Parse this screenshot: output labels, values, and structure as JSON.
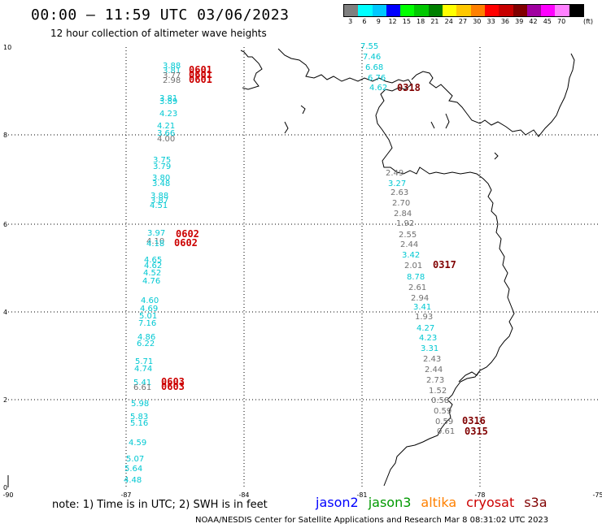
{
  "header": {
    "title": "00:00 – 11:59 UTC 03/06/2023",
    "subtitle": "12 hour collection of altimeter wave heights"
  },
  "colorbar": {
    "colors": [
      "#7f7f7f",
      "#00ffff",
      "#00c8ff",
      "#0000ff",
      "#00ff00",
      "#00c800",
      "#008000",
      "#ffff00",
      "#ffc800",
      "#ff8000",
      "#ff0000",
      "#c80000",
      "#800000",
      "#a000a0",
      "#ff00ff",
      "#ff80ff",
      "#000000"
    ],
    "labels": [
      "3",
      "6",
      "9",
      "12",
      "15",
      "18",
      "21",
      "24",
      "27",
      "30",
      "33",
      "36",
      "39",
      "42",
      "45",
      "70"
    ],
    "unit": "(ft)"
  },
  "axes": {
    "x_ticks": [
      "-90",
      "-87",
      "-84",
      "-81",
      "-78",
      "-75"
    ],
    "y_ticks": [
      "10",
      "8",
      "6",
      "4",
      "2",
      "0"
    ]
  },
  "satellite_colors": {
    "jason2": "#0000ff",
    "jason3": "#009900",
    "altika": "#ff8000",
    "cryosat": "#cc0000",
    "s3a": "#800000",
    "cyan": "#00c8d2",
    "gray": "#707070"
  },
  "tracks": {
    "west": {
      "values": [
        "3.88",
        "3.81",
        "3.77",
        "2.98",
        "3.81",
        "3.89",
        "4.23",
        "4.21",
        "3.66",
        "4.00",
        "3.75",
        "3.79",
        "3.80",
        "3.48",
        "3.88",
        "3.87",
        "4.51",
        "3.97",
        "4.10",
        "4.18",
        "4.65",
        "4.62",
        "4.52",
        "4.76",
        "4.60",
        "4.69",
        "5.01",
        "7.16",
        "4.86",
        "6.22",
        "5.71",
        "4.74",
        "5.41",
        "6.61",
        "5.98",
        "5.83",
        "5.16",
        "4.59",
        "5.07",
        "5.64",
        "4.48"
      ],
      "times": [
        "0601",
        "0601",
        "0601",
        "0602",
        "0602",
        "0603",
        "0603"
      ]
    },
    "east": {
      "values": [
        "7.55",
        "7.46",
        "6.68",
        "6.76",
        "4.62",
        "2.49",
        "3.27",
        "2.63",
        "2.70",
        "2.84",
        "1.92",
        "2.55",
        "2.44",
        "3.42",
        "2.01",
        "8.78",
        "2.61",
        "2.94",
        "3.41",
        "1.93",
        "4.27",
        "4.23",
        "3.31",
        "2.43",
        "2.44",
        "2.73",
        "1.52",
        "0.58",
        "0.59",
        "0.59",
        "0.61"
      ],
      "times": [
        "0318",
        "0317",
        "0316",
        "0315"
      ]
    }
  },
  "legend": {
    "note": "note: 1) Time is in UTC; 2) SWH is in feet",
    "satellites": [
      "jason2",
      "jason3",
      "altika",
      "cryosat",
      "s3a"
    ]
  },
  "credit": "NOAA/NESDIS Center for Satellite Applications and Research   Mar  8 08:31:02 UTC 2023"
}
